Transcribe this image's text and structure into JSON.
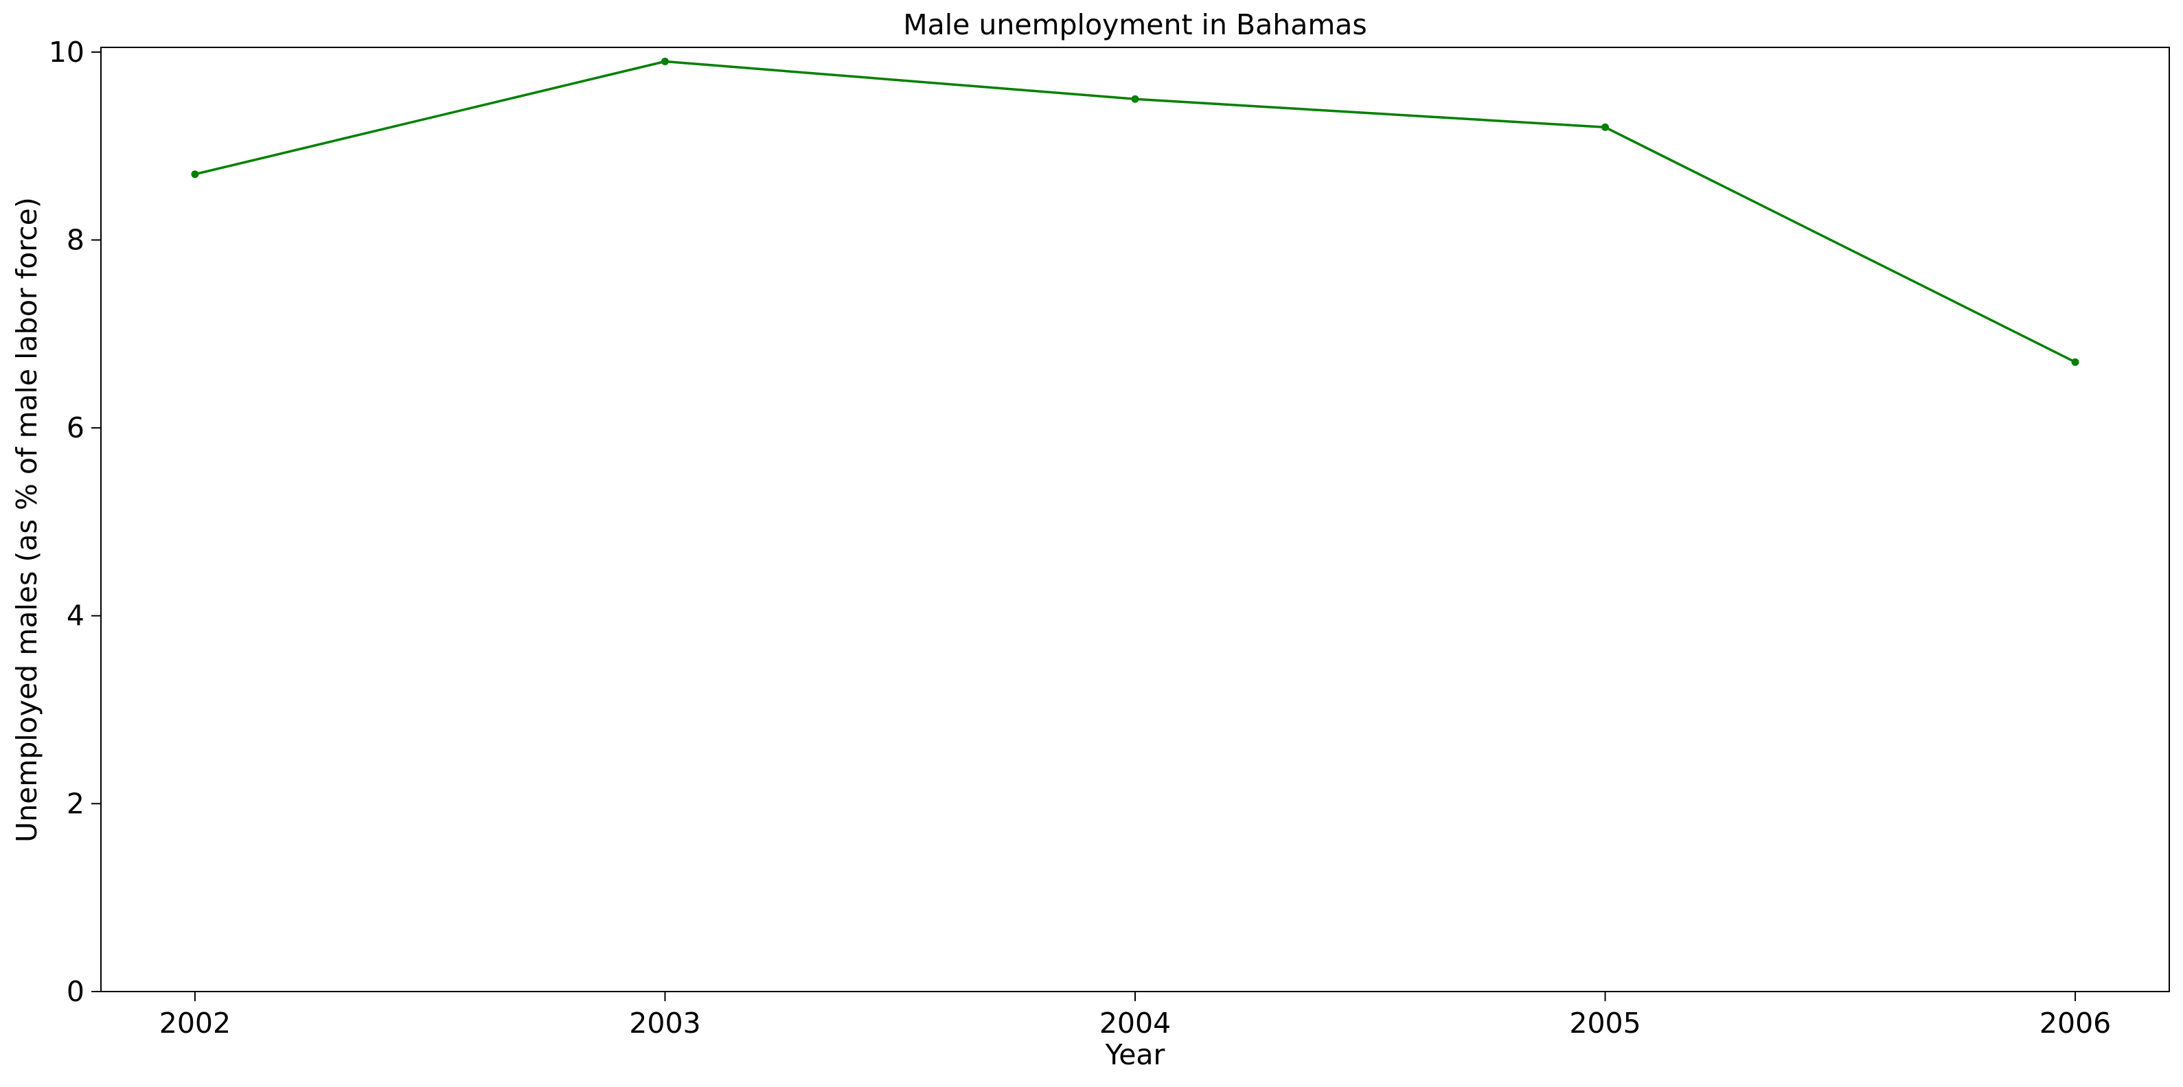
{
  "chart_data": {
    "type": "line",
    "title": "Male unemployment in Bahamas",
    "xlabel": "Year",
    "ylabel": "Unemployed males (as % of male labor force)",
    "x": [
      2002,
      2003,
      2004,
      2005,
      2006
    ],
    "x_tick_labels": [
      "2002",
      "2003",
      "2004",
      "2005",
      "2006"
    ],
    "y_ticks": [
      0,
      2,
      4,
      6,
      8,
      10
    ],
    "y_tick_labels": [
      "0",
      "2",
      "4",
      "6",
      "8",
      "10"
    ],
    "ylim": [
      0,
      10.05
    ],
    "xlim": [
      2001.8,
      2006.2
    ],
    "grid": false,
    "series": [
      {
        "values": [
          8.7,
          9.9,
          9.5,
          9.2,
          6.7
        ],
        "color": "#008000",
        "marker": "point"
      }
    ]
  }
}
